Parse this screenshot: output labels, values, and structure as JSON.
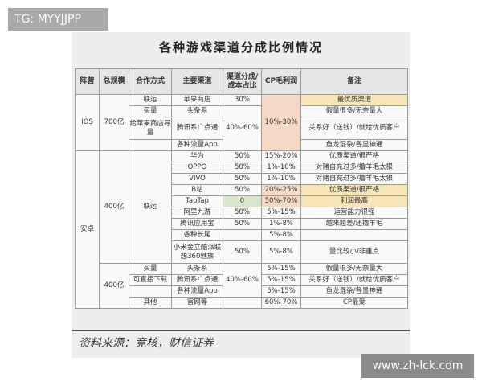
{
  "tag": "TG: MYYJJPP",
  "title": "各种游戏渠道分成比例情况",
  "headers": [
    "阵营",
    "总规模",
    "合作方式",
    "主要渠道",
    "渠道分成/成本占比",
    "CP毛利润",
    "备注"
  ],
  "ios": {
    "camp": "IOS",
    "scale": "700亿",
    "cp": "10%-30%",
    "share_buy": "40%-60%",
    "rows": [
      {
        "coop": "联运",
        "channel": "苹果商店",
        "share": "30%",
        "note": "最优质渠道"
      },
      {
        "coop": "买量",
        "channel": "头条系",
        "note": "假量很多/无奈量大"
      },
      {
        "coop": "给苹果商店导量",
        "channel": "腾讯系广点通",
        "note": "关系好（送钱）/就给优质客户"
      },
      {
        "coop": "",
        "channel": "各种流量App",
        "note": "鱼龙混杂/各显神通"
      }
    ]
  },
  "android": {
    "camp": "安卓",
    "scale1": "400亿",
    "coop1": "联运",
    "rows1": [
      {
        "channel": "华为",
        "share": "50%",
        "cp": "15%-20%",
        "note": "优质渠道/很严格"
      },
      {
        "channel": "OPPO",
        "share": "50%",
        "cp": "1%-10%",
        "note": "对赌自充过多/撸羊毛太狠"
      },
      {
        "channel": "VIVO",
        "share": "50%",
        "cp": "1%-10%",
        "note": "对赌自充过多/撸羊毛太狠"
      },
      {
        "channel": "B站",
        "share": "50%",
        "cp": "20%-25%",
        "note": "优质渠道/很严格"
      },
      {
        "channel": "TapTap",
        "share": "0",
        "cp": "50%-70%",
        "note": "利润最高"
      },
      {
        "channel": "阿里九游",
        "share": "50%",
        "cp": "5%-15%",
        "note": "运营能力很强"
      },
      {
        "channel": "腾讯应用宝",
        "share": "50%",
        "cp": "1%-8%",
        "note": "越来越差/还撸羊毛"
      },
      {
        "channel": "各种长尾",
        "share": "",
        "cp": "5%-8%",
        "note": ""
      },
      {
        "channel": "小米金立酷派联想360魅族",
        "share": "50%",
        "cp": "5%-8%",
        "note": "量比较小/非重点"
      }
    ],
    "scale2": "400亿",
    "share_buy": "40%-60%",
    "rows2": [
      {
        "coop": "买量",
        "channel": "头条系",
        "cp": "5%-15%",
        "note": "假量很多/无奈量大"
      },
      {
        "coop": "可直接下载",
        "channel": "腾讯系广点通",
        "cp": "5%-15%",
        "note": "关系好（送钱）/就给优质客户"
      },
      {
        "coop": "",
        "channel": "各种流量App",
        "cp": "5%-15%",
        "note": "鱼龙混杂/各显神通"
      },
      {
        "coop": "其他",
        "channel": "官网等",
        "share": "",
        "cp": "60%-70%",
        "note": "CP最爱"
      }
    ]
  },
  "source": "资料来源：竞核，财信证券",
  "watermark": "www.zh-lck.com",
  "colors": {
    "peach": "#f4d9c6",
    "yellow": "#f5e5b8",
    "green": "#d8e7cb",
    "header": "#e3e5e6"
  }
}
